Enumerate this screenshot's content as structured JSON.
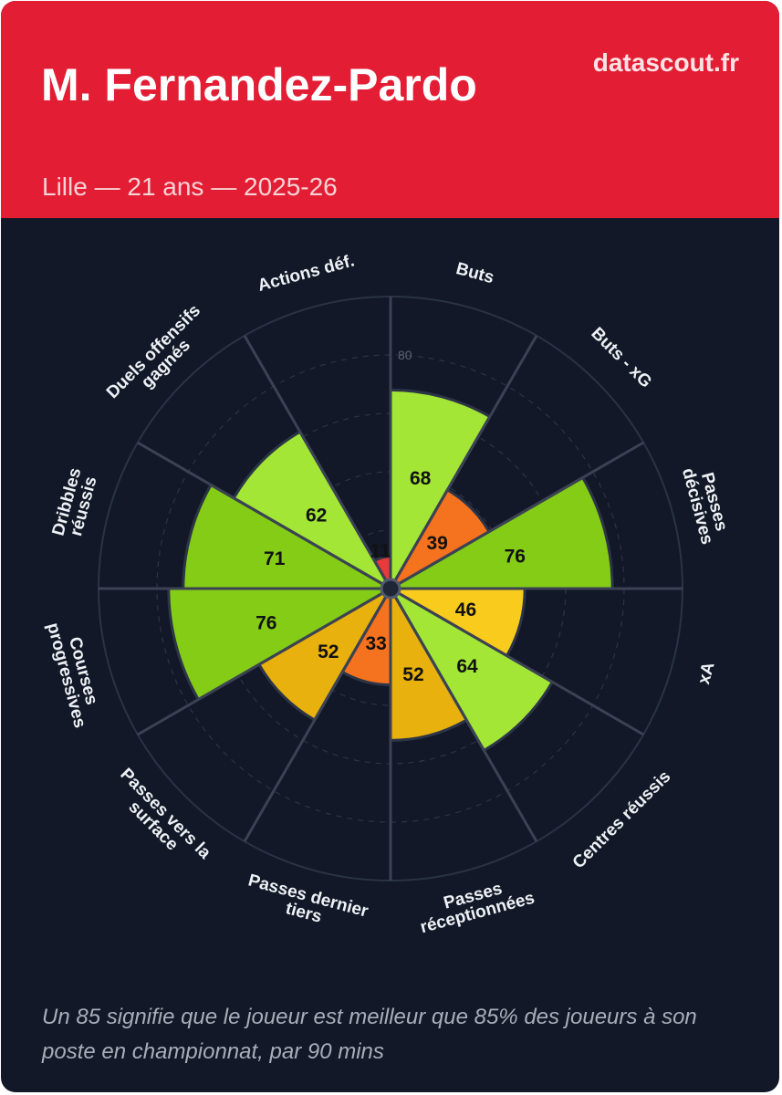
{
  "header": {
    "title": "M. Fernandez-Pardo",
    "subtitle": "Lille — 21 ans — 2025-26",
    "brand": "datascout.fr"
  },
  "footnote": "Un 85 signifie que le joueur est meilleur que 85% des joueurs à son poste en championnat, par 90 mins",
  "colors": {
    "header_bg": "#e31e34",
    "card_bg": "#121827",
    "low": "#e8393b",
    "mid_low": "#f5721e",
    "mid": "#e8b10e",
    "mid_high": "#f8cb1c",
    "high": "#a3e635",
    "top": "#84cc16"
  },
  "chart_data": {
    "type": "polar-bar",
    "rmax": 100,
    "rings": [
      20,
      40,
      60,
      80,
      100
    ],
    "ring_label": "80",
    "categories": [
      "Buts",
      "Buts - xG",
      "Passes décisives",
      "xA",
      "Centres réussis",
      "Passes réceptionnées",
      "Passes dernier tiers",
      "Passes vers la surface",
      "Courses progressives",
      "Dribbles réussis",
      "Duels offensifs gagnés",
      "Actions déf."
    ],
    "values": [
      68,
      39,
      76,
      46,
      64,
      52,
      33,
      52,
      76,
      71,
      62,
      11
    ],
    "value_labels": [
      "68",
      "39",
      "76",
      "46",
      "64",
      "52",
      "33",
      "52",
      "76",
      "71",
      "62",
      "11"
    ]
  }
}
